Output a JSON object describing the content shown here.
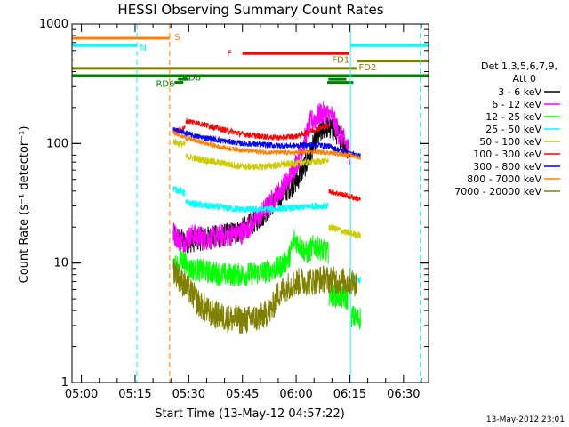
{
  "chart_data": {
    "type": "line",
    "title": "HESSI Observing Summary Count Rates",
    "xlabel": "Start Time (13-May-12 04:57:22)",
    "ylabel": "Count Rate (s⁻¹ detector⁻¹)",
    "footer": "13-May-2012 23:01",
    "x_scale": "time",
    "y_scale": "log",
    "xlim": [
      "04:57:22",
      "06:37:00"
    ],
    "ylim": [
      1,
      1000
    ],
    "xticks": [
      "05:00",
      "05:15",
      "05:30",
      "05:45",
      "06:00",
      "06:15",
      "06:30"
    ],
    "yticks": [
      1,
      10,
      100,
      1000
    ],
    "ytick_labels": [
      "1",
      "10",
      "100",
      "1000"
    ],
    "legend": {
      "placement": "right",
      "header": [
        "Det 1,3,5,6,7,9,",
        "Att 0"
      ],
      "entries": [
        {
          "label": "3 - 6 keV",
          "color": "#000000"
        },
        {
          "label": "6 - 12 keV",
          "color": "#ff00ff"
        },
        {
          "label": "12 - 25 keV",
          "color": "#00ff00"
        },
        {
          "label": "25 - 50 keV",
          "color": "#00ffff"
        },
        {
          "label": "50 - 100 keV",
          "color": "#cccc00"
        },
        {
          "label": "100 - 300 keV",
          "color": "#ff0000"
        },
        {
          "label": "300 - 800 keV",
          "color": "#0000ff"
        },
        {
          "label": "800 - 7000 keV",
          "color": "#ff8000"
        },
        {
          "label": "7000 - 20000 keV",
          "color": "#808000"
        }
      ]
    },
    "vertical_markers": [
      {
        "time": "05:15:30",
        "color": "#00ffff",
        "style": "dashed"
      },
      {
        "time": "05:24:40",
        "color": "#ff8000",
        "style": "dashed"
      },
      {
        "time": "06:15:10",
        "color": "#00ffff",
        "style": "solid"
      },
      {
        "time": "06:34:40",
        "color": "#00ffff",
        "style": "dashed"
      }
    ],
    "flag_bars": [
      {
        "label": "S",
        "color": "#ff8000",
        "start": "04:57:22",
        "end": "05:24:40",
        "y": 760,
        "label_time": "05:26:00",
        "label_y": 790
      },
      {
        "label": "N",
        "color": "#00ffff",
        "start": "04:57:22",
        "end": "05:15:30",
        "y": 660,
        "label_time": "05:16:20",
        "label_y": 640
      },
      {
        "label": "N",
        "color": "#00ffff",
        "start": "06:15:10",
        "end": "06:37:00",
        "y": 660,
        "label_time": "",
        "label_y": 0
      },
      {
        "label": "F",
        "color": "#ff0000",
        "start": "05:45:00",
        "end": "06:14:50",
        "y": 565,
        "label_time": "05:40:40",
        "label_y": 575
      },
      {
        "label": "FD1",
        "color": "#808000",
        "start": "06:17:00",
        "end": "06:37:00",
        "y": 490,
        "label_time": "06:10:00",
        "label_y": 510
      },
      {
        "label": "FD2",
        "color": "#808000",
        "start": "04:57:22",
        "end": "06:17:00",
        "y": 425,
        "label_time": "06:17:30",
        "label_y": 440
      },
      {
        "label": "RD6",
        "color": "#008000",
        "start": "04:57:22",
        "end": "06:37:00",
        "y": 370,
        "label_time": "",
        "label_y": 0
      },
      {
        "label": "RD6",
        "color": "#008000",
        "start": "05:26:00",
        "end": "05:28:30",
        "y": 325,
        "label_time": "05:20:50",
        "label_y": 320
      },
      {
        "label": "RD6",
        "color": "#008000",
        "start": "06:08:40",
        "end": "06:16:00",
        "y": 325,
        "label_time": "",
        "label_y": 0
      },
      {
        "label": "RD6",
        "color": "#008000",
        "start": "06:09:00",
        "end": "06:14:00",
        "y": 345,
        "label_time": "",
        "label_y": 0
      },
      {
        "label": "RD6",
        "color": "#008000",
        "start": "05:27:00",
        "end": "05:30:00",
        "y": 345,
        "label_time": "05:28:10",
        "label_y": 360
      }
    ],
    "series": [
      {
        "name": "3 - 6 keV",
        "color": "#000000",
        "noise": 0.1,
        "segments": [
          {
            "x": [
              "05:25:40",
              "05:29:00",
              "05:34:00",
              "05:40:00",
              "05:45:00",
              "05:50:00",
              "05:54:00",
              "05:57:00",
              "06:00:00",
              "06:03:00",
              "06:05:00",
              "06:08:00",
              "06:11:00",
              "06:13:00",
              "06:14:30"
            ],
            "y": [
              17,
              15,
              16,
              17,
              19,
              24,
              33,
              40,
              48,
              70,
              100,
              140,
              125,
              110,
              80
            ]
          }
        ]
      },
      {
        "name": "6 - 12 keV",
        "color": "#ff00ff",
        "noise": 0.1,
        "segments": [
          {
            "x": [
              "05:25:40",
              "05:28:00",
              "05:31:00",
              "05:35:00",
              "05:40:00",
              "05:45:00",
              "05:50:00",
              "05:54:00",
              "05:58:00",
              "06:01:00",
              "06:04:00",
              "06:07:00",
              "06:10:00",
              "06:12:00",
              "06:14:00",
              "06:15:00"
            ],
            "y": [
              18,
              15,
              17,
              16,
              17,
              18,
              25,
              35,
              50,
              80,
              150,
              180,
              170,
              120,
              100,
              80
            ]
          }
        ]
      },
      {
        "name": "12 - 25 keV",
        "color": "#00ff00",
        "noise": 0.1,
        "segments": [
          {
            "x": [
              "05:25:40",
              "05:27:00",
              "05:28:00",
              "05:30:00",
              "05:35:00",
              "05:40:00",
              "05:45:00",
              "05:50:00",
              "05:55:00",
              "05:58:00",
              "05:59:30",
              "06:01:00",
              "06:03:00",
              "06:05:00",
              "06:07:00",
              "06:09:00"
            ],
            "y": [
              10,
              9,
              11,
              9,
              8.5,
              8,
              8,
              8.3,
              9,
              11,
              16,
              14,
              12,
              14,
              13,
              12
            ]
          },
          {
            "x": [
              "06:09:10",
              "06:12:00",
              "06:14:30"
            ],
            "y": [
              5.5,
              5.2,
              5
            ]
          },
          {
            "x": [
              "06:15:30",
              "06:17:00",
              "06:18:00"
            ],
            "y": [
              3.6,
              3.4,
              3.5
            ]
          }
        ]
      },
      {
        "name": "25 - 50 keV",
        "color": "#00ffff",
        "noise": 0.03,
        "segments": [
          {
            "x": [
              "05:25:40",
              "05:28:00",
              "05:29:00"
            ],
            "y": [
              42,
              40,
              38
            ]
          },
          {
            "x": [
              "05:29:10",
              "05:35:00",
              "05:40:00",
              "05:45:00",
              "05:50:00",
              "05:55:00",
              "06:00:00",
              "06:05:00",
              "06:09:00"
            ],
            "y": [
              32,
              30,
              29,
              28,
              28,
              28.5,
              29,
              30,
              30
            ]
          },
          {
            "x": [
              "06:15:30",
              "06:17:00",
              "06:18:00"
            ],
            "y": [
              7.5,
              7.3,
              7.2
            ]
          }
        ]
      },
      {
        "name": "50 - 100 keV",
        "color": "#cccc00",
        "noise": 0.03,
        "segments": [
          {
            "x": [
              "05:25:40",
              "05:27:00",
              "05:29:00"
            ],
            "y": [
              105,
              100,
              98
            ]
          },
          {
            "x": [
              "05:29:10",
              "05:35:00",
              "05:40:00",
              "05:45:00",
              "05:50:00",
              "05:55:00",
              "06:00:00",
              "06:05:00",
              "06:09:00"
            ],
            "y": [
              78,
              72,
              68,
              64,
              64,
              66,
              68,
              70,
              72
            ]
          },
          {
            "x": [
              "06:09:10",
              "06:12:00",
              "06:14:00",
              "06:18:00"
            ],
            "y": [
              20,
              19,
              18,
              17
            ]
          }
        ]
      },
      {
        "name": "100 - 300 keV",
        "color": "#ff0000",
        "noise": 0.025,
        "segments": [
          {
            "x": [
              "05:25:40",
              "05:27:30",
              "05:29:00"
            ],
            "y": [
              125,
              130,
              135
            ]
          },
          {
            "x": [
              "05:29:10",
              "05:32:00",
              "05:36:00",
              "05:40:00",
              "05:45:00",
              "05:50:00",
              "05:55:00",
              "06:00:00",
              "06:05:00",
              "06:09:00"
            ],
            "y": [
              155,
              150,
              140,
              130,
              120,
              115,
              112,
              115,
              130,
              140
            ]
          },
          {
            "x": [
              "06:09:10",
              "06:12:00",
              "06:15:00",
              "06:18:00"
            ],
            "y": [
              40,
              38,
              36,
              34
            ]
          }
        ]
      },
      {
        "name": "300 - 800 keV",
        "color": "#0000ff",
        "noise": 0.025,
        "segments": [
          {
            "x": [
              "05:25:40",
              "05:28:00",
              "05:32:00",
              "05:36:00",
              "05:40:00",
              "05:45:00",
              "05:50:00",
              "05:55:00",
              "06:00:00",
              "06:05:00",
              "06:09:00",
              "06:12:00",
              "06:15:00",
              "06:18:00"
            ],
            "y": [
              130,
              125,
              115,
              110,
              105,
              100,
              98,
              96,
              96,
              98,
              95,
              88,
              82,
              78
            ]
          }
        ]
      },
      {
        "name": "800 - 7000 keV",
        "color": "#ff8000",
        "noise": 0.02,
        "segments": [
          {
            "x": [
              "05:25:40",
              "05:28:00",
              "05:32:00",
              "05:36:00",
              "05:40:00",
              "05:45:00",
              "05:50:00",
              "05:55:00",
              "06:00:00",
              "06:05:00",
              "06:09:00",
              "06:12:00",
              "06:15:00",
              "06:18:00"
            ],
            "y": [
              125,
              115,
              105,
              98,
              92,
              88,
              85,
              84,
              84,
              85,
              84,
              82,
              80,
              76
            ]
          }
        ]
      },
      {
        "name": "7000 - 20000 keV",
        "color": "#808000",
        "noise": 0.12,
        "segments": [
          {
            "x": [
              "05:25:40",
              "05:28:00",
              "05:31:00",
              "05:33:00",
              "05:36:00",
              "05:40:00",
              "05:45:00",
              "05:50:00",
              "05:53:00",
              "05:55:00",
              "05:58:00",
              "06:01:00",
              "06:04:00",
              "06:07:00",
              "06:10:00",
              "06:13:00",
              "06:15:00",
              "06:17:00"
            ],
            "y": [
              9,
              7,
              5.5,
              4.5,
              3.8,
              3.5,
              3.3,
              3.5,
              4,
              5.5,
              6.5,
              7,
              7,
              7.3,
              7.2,
              7,
              7,
              6.8
            ]
          }
        ]
      }
    ]
  }
}
